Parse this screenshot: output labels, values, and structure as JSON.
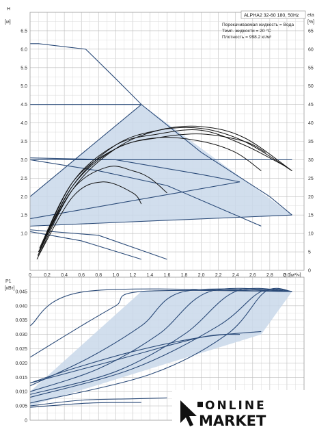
{
  "chart_data": [
    {
      "type": "line",
      "panel": "head-efficiency",
      "title": "ALPHA2 32-60 180, 50Hz",
      "info_lines": [
        "Перекачиваемая жидкость = Вода",
        "Темп. жидкости = 20 °C",
        "Плотность = 998.2 кг/м³"
      ],
      "ylabel": "H",
      "yunit": "[м]",
      "y2label": "eta",
      "y2unit": "[%]",
      "xlabel": "Q",
      "xunit": "[м³/ч]",
      "xlim": [
        0,
        3.2
      ],
      "ylim": [
        0,
        7
      ],
      "y2lim": [
        0,
        70
      ],
      "x_ticks": [
        "0",
        "0.2",
        "0.4",
        "0.6",
        "0.8",
        "1.0",
        "1.2",
        "1.4",
        "1.6",
        "1.8",
        "2.0",
        "2.2",
        "2.4",
        "2.6",
        "2.8",
        "3.0"
      ],
      "y_ticks": [
        "1.0",
        "1.5",
        "2.0",
        "2.5",
        "3.0",
        "3.5",
        "4.0",
        "4.5",
        "5.0",
        "5.5",
        "6.0",
        "6.5"
      ],
      "y2_ticks": [
        "0",
        "5",
        "10",
        "15",
        "20",
        "25",
        "30",
        "35",
        "40",
        "45",
        "50",
        "55",
        "60",
        "65"
      ],
      "region": [
        [
          0,
          2.0
        ],
        [
          1.3,
          4.5
        ],
        [
          3.06,
          1.5
        ],
        [
          0,
          1.2
        ]
      ],
      "head_series": [
        {
          "x": [
            0,
            0.1,
            0.65,
            1.0,
            1.3,
            2.0,
            2.8,
            3.06
          ],
          "y": [
            6.15,
            6.15,
            6.0,
            5.2,
            4.5,
            3.2,
            2.0,
            1.5
          ]
        },
        {
          "x": [
            0,
            1.3
          ],
          "y": [
            4.5,
            4.5
          ]
        },
        {
          "x": [
            0,
            1.3
          ],
          "y": [
            2.0,
            4.5
          ]
        },
        {
          "x": [
            0,
            3.06
          ],
          "y": [
            1.2,
            1.5
          ]
        },
        {
          "x": [
            0,
            1.0,
            2.0,
            2.45
          ],
          "y": [
            3.05,
            3.0,
            2.6,
            2.4
          ]
        },
        {
          "x": [
            0,
            2.45
          ],
          "y": [
            1.4,
            2.4
          ]
        },
        {
          "x": [
            0,
            0.8,
            1.6,
            2.7
          ],
          "y": [
            3.0,
            2.7,
            2.3,
            1.2
          ]
        },
        {
          "x": [
            0,
            2.0,
            3.06
          ],
          "y": [
            3.0,
            3.0,
            3.0
          ]
        },
        {
          "x": [
            0,
            0.8,
            1.6
          ],
          "y": [
            1.1,
            0.95,
            0.3
          ]
        },
        {
          "x": [
            0,
            0.6,
            1.3
          ],
          "y": [
            1.05,
            0.8,
            0.3
          ]
        }
      ],
      "eta_series": [
        {
          "x": [
            0.08,
            0.5,
            1.0,
            1.5,
            2.0,
            2.5,
            3.06
          ],
          "y": [
            3,
            22,
            33,
            38,
            39,
            36,
            27
          ]
        },
        {
          "x": [
            0.09,
            0.5,
            1.0,
            1.5,
            2.0,
            2.5,
            3.06
          ],
          "y": [
            4,
            23,
            34,
            38,
            38.5,
            35,
            27
          ]
        },
        {
          "x": [
            0.1,
            0.5,
            1.0,
            1.5,
            2.0,
            2.5,
            3.0
          ],
          "y": [
            5,
            24,
            34,
            37,
            38,
            34,
            28
          ]
        },
        {
          "x": [
            0.1,
            0.5,
            1.0,
            1.5,
            2.0,
            2.5,
            2.75
          ],
          "y": [
            5,
            23,
            33,
            36,
            37,
            35,
            32
          ]
        },
        {
          "x": [
            0.11,
            0.5,
            1.0,
            1.5,
            2.0,
            2.4,
            2.7
          ],
          "y": [
            6,
            24,
            33,
            36,
            35,
            32,
            27
          ]
        },
        {
          "x": [
            0.1,
            0.5,
            0.9,
            1.2,
            1.4,
            1.6
          ],
          "y": [
            5,
            22,
            28,
            27,
            25,
            21
          ]
        },
        {
          "x": [
            0.1,
            0.5,
            0.85,
            1.2,
            1.3
          ],
          "y": [
            4,
            20,
            24,
            21,
            18
          ]
        }
      ]
    },
    {
      "type": "line",
      "panel": "power",
      "ylabel": "P1",
      "yunit": "[кВт]",
      "xlim": [
        0,
        3.2
      ],
      "ylim": [
        0,
        0.05
      ],
      "y_ticks": [
        "0",
        "0.005",
        "0.010",
        "0.015",
        "0.020",
        "0.025",
        "0.030",
        "0.035",
        "0.040",
        "0.045"
      ],
      "cap": 0.045,
      "region": [
        [
          0,
          0.01
        ],
        [
          1.3,
          0.045
        ],
        [
          3.06,
          0.045
        ],
        [
          2.7,
          0.03
        ],
        [
          0,
          0.005
        ]
      ],
      "power_series": [
        {
          "x": [
            0,
            0.65,
            3.06
          ],
          "y": [
            0.033,
            0.045,
            0.045
          ]
        },
        {
          "x": [
            0,
            0.6,
            1.0,
            1.3,
            3.06
          ],
          "y": [
            0.022,
            0.033,
            0.04,
            0.045,
            0.045
          ]
        },
        {
          "x": [
            0,
            0.7,
            1.3,
            1.8,
            3.06
          ],
          "y": [
            0.012,
            0.022,
            0.033,
            0.045,
            0.045
          ]
        },
        {
          "x": [
            0,
            0.8,
            1.5,
            2.1,
            3.06
          ],
          "y": [
            0.01,
            0.018,
            0.03,
            0.045,
            0.045
          ]
        },
        {
          "x": [
            0,
            1.0,
            1.8,
            2.4,
            3.06
          ],
          "y": [
            0.009,
            0.017,
            0.03,
            0.045,
            0.045
          ]
        },
        {
          "x": [
            0,
            1.2,
            2.2,
            2.7,
            3.06
          ],
          "y": [
            0.008,
            0.018,
            0.033,
            0.045,
            0.045
          ]
        },
        {
          "x": [
            0,
            1.4,
            2.3,
            2.75,
            3.06
          ],
          "y": [
            0.006,
            0.016,
            0.03,
            0.045,
            0.045
          ]
        },
        {
          "x": [
            0,
            0.5,
            1.2,
            2.0,
            2.7
          ],
          "y": [
            0.013,
            0.018,
            0.024,
            0.029,
            0.031
          ]
        },
        {
          "x": [
            0,
            1.0,
            2.0,
            2.45
          ],
          "y": [
            0.013,
            0.021,
            0.029,
            0.03
          ]
        },
        {
          "x": [
            0,
            0.6,
            1.2,
            1.6
          ],
          "y": [
            0.005,
            0.007,
            0.0075,
            0.0078
          ]
        },
        {
          "x": [
            0,
            0.7,
            1.3
          ],
          "y": [
            0.0045,
            0.006,
            0.0062
          ]
        }
      ]
    }
  ],
  "logo": {
    "line1": "ONLINE",
    "line2": "MARKET"
  },
  "colors": {
    "curve": "#2a4a78",
    "region_fill": "#c9d8ea",
    "eta_curve": "#111111",
    "grid": "#cfcfcf"
  }
}
